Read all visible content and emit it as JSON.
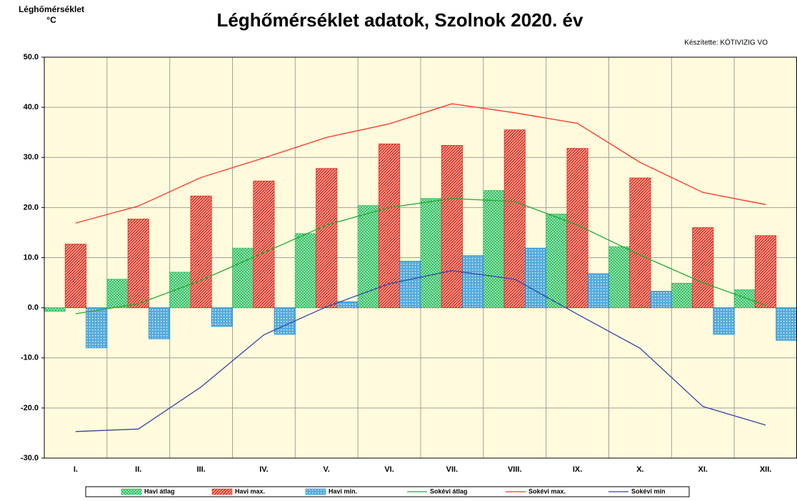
{
  "chart_data": {
    "type": "bar",
    "title": "Léghőmérséklet adatok, Szolnok 2020. év",
    "y_label": [
      "Léghőmérséklet",
      "°C"
    ],
    "credit": "Készítette: KÖTIVIZIG VO",
    "categories": [
      "I.",
      "II.",
      "III.",
      "IV.",
      "V.",
      "VI.",
      "VII.",
      "VIII.",
      "IX.",
      "X.",
      "XI.",
      "XII."
    ],
    "series": [
      {
        "name": "Havi átlag",
        "type": "bar",
        "color": "#2fc060",
        "values": [
          -0.7,
          5.7,
          7.1,
          11.9,
          14.8,
          20.4,
          21.8,
          23.4,
          18.7,
          12.2,
          4.9,
          3.6
        ]
      },
      {
        "name": "Havi max.",
        "type": "bar",
        "color": "#e0301e",
        "values": [
          12.7,
          17.7,
          22.3,
          25.3,
          27.8,
          32.7,
          32.4,
          35.5,
          31.8,
          25.9,
          16.0,
          14.4
        ]
      },
      {
        "name": "Havi min.",
        "type": "bar",
        "color": "#1c8ed0",
        "values": [
          -8.0,
          -6.2,
          -3.7,
          -5.3,
          1.2,
          9.3,
          10.4,
          11.9,
          6.8,
          3.3,
          -5.3,
          -6.5
        ]
      },
      {
        "name": "Sokévi átlag",
        "type": "line",
        "color": "#22aa33",
        "values": [
          -1.2,
          0.8,
          5.5,
          11.0,
          16.5,
          20.0,
          21.8,
          21.2,
          16.5,
          10.5,
          5.0,
          0.5
        ]
      },
      {
        "name": "Sokévi max.",
        "type": "line",
        "color": "#ff3322",
        "values": [
          16.9,
          20.3,
          26.0,
          29.9,
          34.0,
          36.7,
          40.7,
          38.9,
          36.8,
          29.0,
          23.0,
          20.6
        ]
      },
      {
        "name": "Sokévi min",
        "type": "line",
        "color": "#3344aa",
        "values": [
          -24.7,
          -24.2,
          -15.8,
          -5.4,
          0.2,
          4.8,
          7.4,
          5.7,
          -1.3,
          -8.1,
          -19.7,
          -23.4
        ]
      }
    ],
    "ylim": [
      -30,
      50
    ],
    "yticks": [
      {
        "value": -30,
        "label": "-30.0"
      },
      {
        "value": -20,
        "label": "-20.0"
      },
      {
        "value": -10,
        "label": "-10.0"
      },
      {
        "value": 0,
        "label": "0.0"
      },
      {
        "value": 10,
        "label": "10.0"
      },
      {
        "value": 20,
        "label": "20.0"
      },
      {
        "value": 30,
        "label": "30.0"
      },
      {
        "value": 40,
        "label": "40.0"
      },
      {
        "value": 50,
        "label": "50.0"
      }
    ],
    "grid": true,
    "plot_background": "#fffbdc"
  }
}
